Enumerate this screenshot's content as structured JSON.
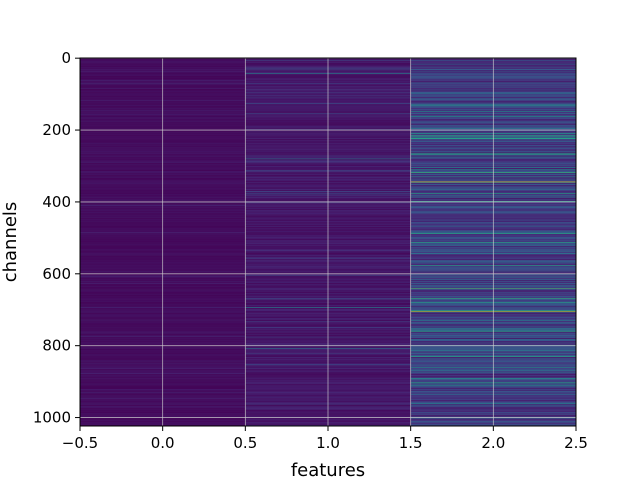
{
  "chart_data": {
    "type": "heatmap",
    "title": "",
    "xlabel": "features",
    "ylabel": "channels",
    "xlim": [
      -0.5,
      2.5
    ],
    "ylim": [
      1023.5,
      -0.5
    ],
    "x_ticks": [
      -0.5,
      0.0,
      0.5,
      1.0,
      1.5,
      2.0,
      2.5
    ],
    "x_tick_labels": [
      "−0.5",
      "0.0",
      "0.5",
      "1.0",
      "1.5",
      "2.0",
      "2.5"
    ],
    "y_ticks": [
      0,
      200,
      400,
      600,
      800,
      1000
    ],
    "y_tick_labels": [
      "0",
      "200",
      "400",
      "600",
      "800",
      "1000"
    ],
    "grid": true,
    "colormap": "viridis",
    "columns": [
      0,
      1,
      2
    ],
    "rows": 1024,
    "column_typical_level": [
      0.04,
      0.08,
      0.22
    ],
    "bright_rows": [
      {
        "column": 1,
        "row": 42,
        "value": 0.45
      },
      {
        "column": 1,
        "row": 280,
        "value": 0.4
      },
      {
        "column": 1,
        "row": 695,
        "value": 0.45
      },
      {
        "column": 1,
        "row": 808,
        "value": 0.4
      },
      {
        "column": 2,
        "row": 345,
        "value": 0.95
      },
      {
        "column": 2,
        "row": 640,
        "value": 0.7
      },
      {
        "column": 2,
        "row": 705,
        "value": 0.9
      },
      {
        "column": 2,
        "row": 130,
        "value": 0.55
      },
      {
        "column": 2,
        "row": 210,
        "value": 0.55
      },
      {
        "column": 2,
        "row": 760,
        "value": 0.6
      },
      {
        "column": 2,
        "row": 860,
        "value": 0.5
      }
    ]
  }
}
